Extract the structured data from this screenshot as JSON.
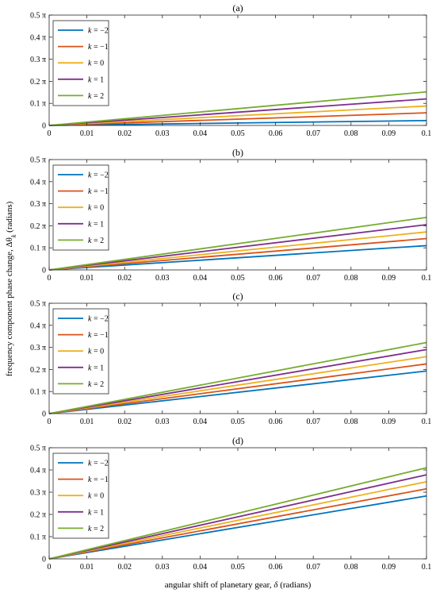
{
  "figure": {
    "ylabel": "frequency component phase change,  Δθ_{k}  (radians)",
    "xlabel": "angular shift of planetary gear,  δ (radians)"
  },
  "chart_data": [
    {
      "type": "line",
      "title": "(a)",
      "xlim": [
        0,
        0.1
      ],
      "ylim": [
        0,
        0.5
      ],
      "x_ticks": [
        "0",
        "0.01",
        "0.02",
        "0.03",
        "0.04",
        "0.05",
        "0.06",
        "0.07",
        "0.08",
        "0.09",
        "0.1"
      ],
      "y_ticks": [
        "0",
        "0.1 π",
        "0.2 π",
        "0.3 π",
        "0.4 π",
        "0.5 π"
      ],
      "y_unit": "π",
      "legend_position": "top-left",
      "grid": false,
      "series": [
        {
          "name": "k = −2",
          "color": "#0072BD",
          "x": [
            0,
            0.1
          ],
          "y": [
            0,
            0.022
          ]
        },
        {
          "name": "k = −1",
          "color": "#D95319",
          "x": [
            0,
            0.1
          ],
          "y": [
            0,
            0.057
          ]
        },
        {
          "name": "k = 0",
          "color": "#EDB120",
          "x": [
            0,
            0.1
          ],
          "y": [
            0,
            0.088
          ]
        },
        {
          "name": "k = 1",
          "color": "#7E2F8E",
          "x": [
            0,
            0.1
          ],
          "y": [
            0,
            0.12
          ]
        },
        {
          "name": "k = 2",
          "color": "#77AC30",
          "x": [
            0,
            0.1
          ],
          "y": [
            0,
            0.152
          ]
        }
      ]
    },
    {
      "type": "line",
      "title": "(b)",
      "xlim": [
        0,
        0.1
      ],
      "ylim": [
        0,
        0.5
      ],
      "x_ticks": [
        "0",
        "0.01",
        "0.02",
        "0.03",
        "0.04",
        "0.05",
        "0.06",
        "0.07",
        "0.08",
        "0.09",
        "0.1"
      ],
      "y_ticks": [
        "0",
        "0.1 π",
        "0.2 π",
        "0.3 π",
        "0.4 π",
        "0.5 π"
      ],
      "y_unit": "π",
      "legend_position": "top-left",
      "grid": false,
      "series": [
        {
          "name": "k = −2",
          "color": "#0072BD",
          "x": [
            0,
            0.1
          ],
          "y": [
            0,
            0.11
          ]
        },
        {
          "name": "k = −1",
          "color": "#D95319",
          "x": [
            0,
            0.1
          ],
          "y": [
            0,
            0.142
          ]
        },
        {
          "name": "k = 0",
          "color": "#EDB120",
          "x": [
            0,
            0.1
          ],
          "y": [
            0,
            0.172
          ]
        },
        {
          "name": "k = 1",
          "color": "#7E2F8E",
          "x": [
            0,
            0.1
          ],
          "y": [
            0,
            0.205
          ]
        },
        {
          "name": "k = 2",
          "color": "#77AC30",
          "x": [
            0,
            0.1
          ],
          "y": [
            0,
            0.238
          ]
        }
      ]
    },
    {
      "type": "line",
      "title": "(c)",
      "xlim": [
        0,
        0.1
      ],
      "ylim": [
        0,
        0.5
      ],
      "x_ticks": [
        "0",
        "0.01",
        "0.02",
        "0.03",
        "0.04",
        "0.05",
        "0.06",
        "0.07",
        "0.08",
        "0.09",
        "0.1"
      ],
      "y_ticks": [
        "0",
        "0.1 π",
        "0.2 π",
        "0.3 π",
        "0.4 π",
        "0.5 π"
      ],
      "y_unit": "π",
      "legend_position": "top-left",
      "grid": false,
      "series": [
        {
          "name": "k = −2",
          "color": "#0072BD",
          "x": [
            0,
            0.1
          ],
          "y": [
            0,
            0.193
          ]
        },
        {
          "name": "k = −1",
          "color": "#D95319",
          "x": [
            0,
            0.1
          ],
          "y": [
            0,
            0.225
          ]
        },
        {
          "name": "k = 0",
          "color": "#EDB120",
          "x": [
            0,
            0.1
          ],
          "y": [
            0,
            0.258
          ]
        },
        {
          "name": "k = 1",
          "color": "#7E2F8E",
          "x": [
            0,
            0.1
          ],
          "y": [
            0,
            0.29
          ]
        },
        {
          "name": "k = 2",
          "color": "#77AC30",
          "x": [
            0,
            0.1
          ],
          "y": [
            0,
            0.322
          ]
        }
      ]
    },
    {
      "type": "line",
      "title": "(d)",
      "xlim": [
        0,
        0.1
      ],
      "ylim": [
        0,
        0.5
      ],
      "x_ticks": [
        "0",
        "0.01",
        "0.02",
        "0.03",
        "0.04",
        "0.05",
        "0.06",
        "0.07",
        "0.08",
        "0.09",
        "0.1"
      ],
      "y_ticks": [
        "0",
        "0.1 π",
        "0.2 π",
        "0.3 π",
        "0.4 π",
        "0.5 π"
      ],
      "y_unit": "π",
      "legend_position": "top-left",
      "grid": false,
      "series": [
        {
          "name": "k = −2",
          "color": "#0072BD",
          "x": [
            0,
            0.1
          ],
          "y": [
            0,
            0.283
          ]
        },
        {
          "name": "k = −1",
          "color": "#D95319",
          "x": [
            0,
            0.1
          ],
          "y": [
            0,
            0.315
          ]
        },
        {
          "name": "k = 0",
          "color": "#EDB120",
          "x": [
            0,
            0.1
          ],
          "y": [
            0,
            0.347
          ]
        },
        {
          "name": "k = 1",
          "color": "#7E2F8E",
          "x": [
            0,
            0.1
          ],
          "y": [
            0,
            0.378
          ]
        },
        {
          "name": "k = 2",
          "color": "#77AC30",
          "x": [
            0,
            0.1
          ],
          "y": [
            0,
            0.41
          ]
        }
      ]
    }
  ]
}
